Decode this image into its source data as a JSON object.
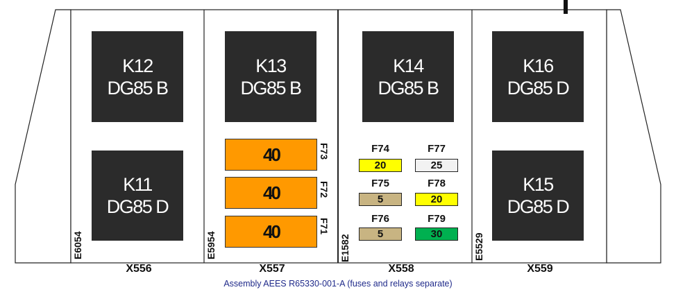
{
  "relays": [
    {
      "id": "k12",
      "name": "K12",
      "type": "DG85 B"
    },
    {
      "id": "k11",
      "name": "K11",
      "type": "DG85 D"
    },
    {
      "id": "k13",
      "name": "K13",
      "type": "DG85 B"
    },
    {
      "id": "k14",
      "name": "K14",
      "type": "DG85 B"
    },
    {
      "id": "k16",
      "name": "K16",
      "type": "DG85 D"
    },
    {
      "id": "k15",
      "name": "K15",
      "type": "DG85 D"
    }
  ],
  "big_fuses": [
    {
      "id": "f73",
      "rating": "40",
      "label": "F73"
    },
    {
      "id": "f72",
      "rating": "40",
      "label": "F72"
    },
    {
      "id": "f71",
      "rating": "40",
      "label": "F71"
    }
  ],
  "small_fuses": [
    {
      "id": "f74",
      "label": "F74",
      "rating": "20",
      "color": "#ffff00"
    },
    {
      "id": "f77",
      "label": "F77",
      "rating": "25",
      "color": "#f2f2f2"
    },
    {
      "id": "f75",
      "label": "F75",
      "rating": "5",
      "color": "#c8b482"
    },
    {
      "id": "f78",
      "label": "F78",
      "rating": "20",
      "color": "#ffff00"
    },
    {
      "id": "f76",
      "label": "F76",
      "rating": "5",
      "color": "#c8b482"
    },
    {
      "id": "f79",
      "label": "F79",
      "rating": "30",
      "color": "#00b050"
    }
  ],
  "side_labels": [
    "E6054",
    "E5954",
    "E1582",
    "E5529"
  ],
  "connectors": [
    "X556",
    "X557",
    "X558",
    "X559"
  ],
  "caption": "Assembly AEES R65330-001-A (fuses and relays separate)"
}
